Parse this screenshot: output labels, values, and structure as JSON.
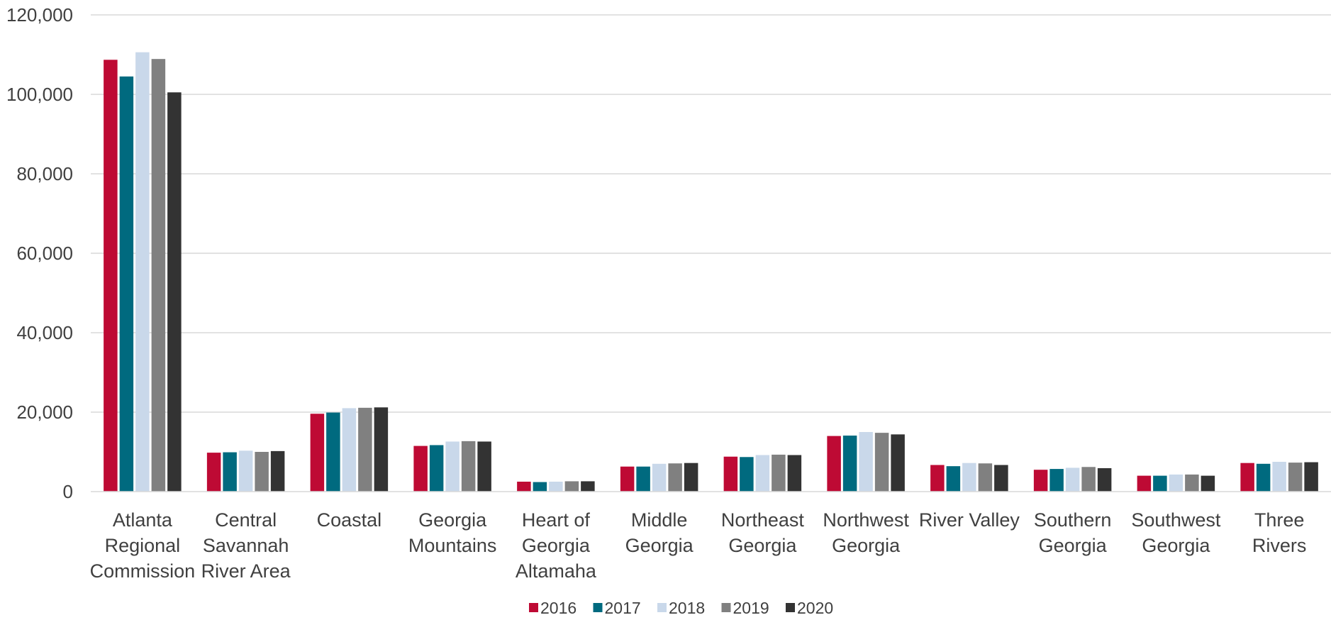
{
  "chart_data": {
    "type": "bar",
    "title": "",
    "xlabel": "",
    "ylabel": "",
    "ylim": [
      0,
      120000
    ],
    "yticks": [
      0,
      20000,
      40000,
      60000,
      80000,
      100000,
      120000
    ],
    "ytick_labels": [
      "0",
      "20,000",
      "40,000",
      "60,000",
      "80,000",
      "100,000",
      "120,000"
    ],
    "grid": "horizontal",
    "legend_position": "bottom",
    "categories": [
      "Atlanta Regional Commission",
      "Central Savannah River Area",
      "Coastal",
      "Georgia Mountains",
      "Heart of Georgia Altamaha",
      "Middle Georgia",
      "Northeast Georgia",
      "Northwest Georgia",
      "River Valley",
      "Southern Georgia",
      "Southwest Georgia",
      "Three Rivers"
    ],
    "category_label_lines": [
      [
        "Atlanta",
        "Regional",
        "Commission"
      ],
      [
        "Central",
        "Savannah",
        "River Area"
      ],
      [
        "Coastal"
      ],
      [
        "Georgia",
        "Mountains"
      ],
      [
        "Heart of",
        "Georgia",
        "Altamaha"
      ],
      [
        "Middle",
        "Georgia"
      ],
      [
        "Northeast",
        "Georgia"
      ],
      [
        "Northwest",
        "Georgia"
      ],
      [
        "River Valley"
      ],
      [
        "Southern",
        "Georgia"
      ],
      [
        "Southwest",
        "Georgia"
      ],
      [
        "Three",
        "Rivers"
      ]
    ],
    "series": [
      {
        "name": "2016",
        "color": "#BE0A34",
        "values": [
          108700,
          9800,
          19600,
          11500,
          2500,
          6300,
          8800,
          14000,
          6700,
          5500,
          4000,
          7200
        ]
      },
      {
        "name": "2017",
        "color": "#006A7F",
        "values": [
          104500,
          9900,
          19900,
          11700,
          2400,
          6300,
          8700,
          14100,
          6400,
          5700,
          4000,
          7000
        ]
      },
      {
        "name": "2018",
        "color": "#C9D8EA",
        "values": [
          110600,
          10300,
          21000,
          12600,
          2500,
          7000,
          9200,
          15000,
          7200,
          6000,
          4300,
          7500
        ]
      },
      {
        "name": "2019",
        "color": "#808080",
        "values": [
          108900,
          10000,
          21100,
          12700,
          2600,
          7100,
          9300,
          14800,
          7100,
          6200,
          4300,
          7300
        ]
      },
      {
        "name": "2020",
        "color": "#333333",
        "values": [
          100500,
          10200,
          21200,
          12600,
          2600,
          7200,
          9200,
          14400,
          6700,
          5900,
          4000,
          7400
        ]
      }
    ]
  }
}
